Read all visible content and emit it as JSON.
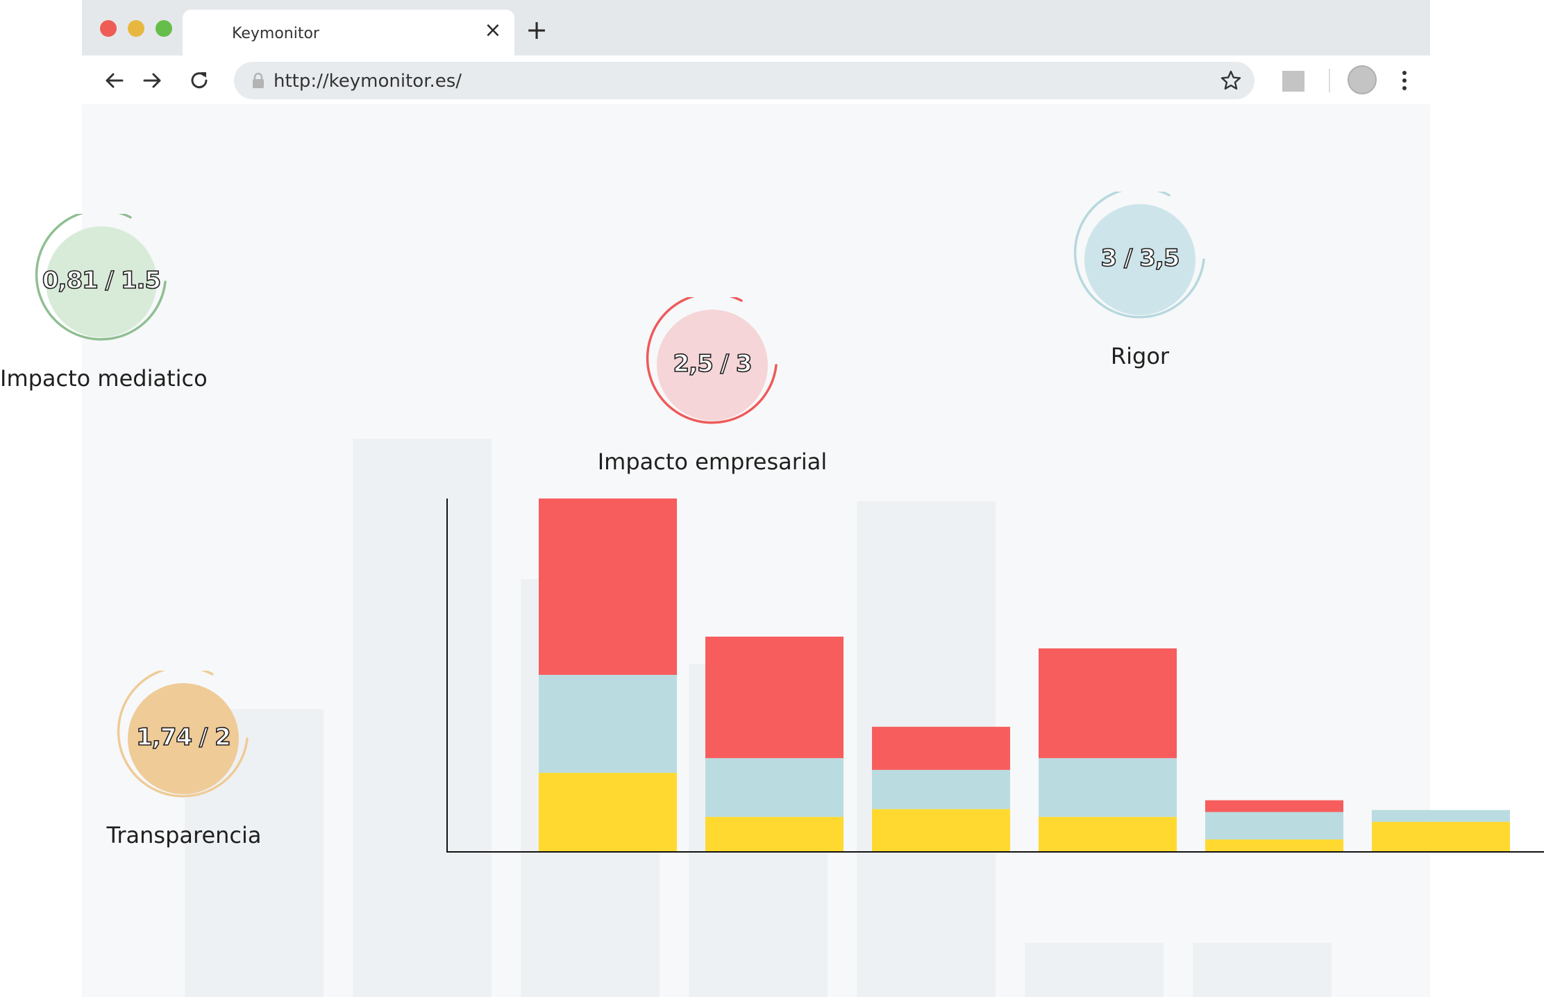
{
  "browser": {
    "tab_title": "Keymonitor",
    "tab_close_icon": "close-icon",
    "new_tab_icon": "plus-icon",
    "url": "http://keymonitor.es/",
    "traffic_lights": {
      "close": "#ee5c55",
      "minimize": "#e8b73f",
      "maximize": "#65be4a"
    }
  },
  "gauges": [
    {
      "id": "impacto-mediatico",
      "value": "0,81 / 1.5",
      "label": "Impacto mediatico",
      "fill": "#d8ebd9",
      "ring": "#8fbf92"
    },
    {
      "id": "impacto-empresarial",
      "value": "2,5 / 3",
      "label": "Impacto empresarial",
      "fill": "#f5d5d7",
      "ring": "#ee5a5a"
    },
    {
      "id": "rigor",
      "value": "3 / 3,5",
      "label": "Rigor",
      "fill": "#cde5ea",
      "ring": "#b6d8de"
    },
    {
      "id": "transparencia",
      "value": "1,74 / 2",
      "label": "Transparencia",
      "fill": "#efcb98",
      "ring": "#efcb98"
    }
  ],
  "chart_data": {
    "type": "bar",
    "stacked": true,
    "categories": [
      "",
      "",
      "",
      "",
      "",
      ""
    ],
    "series": [
      {
        "color": "#ffd92f",
        "values": [
          80,
          35,
          43,
          35,
          12,
          30
        ]
      },
      {
        "color": "#badce1",
        "values": [
          100,
          60,
          40,
          60,
          28,
          12
        ]
      },
      {
        "color": "#f75d5d",
        "values": [
          180,
          124,
          44,
          112,
          12,
          0
        ]
      }
    ],
    "ylim": [
      0,
      360
    ],
    "grid": false,
    "legend": "none"
  }
}
